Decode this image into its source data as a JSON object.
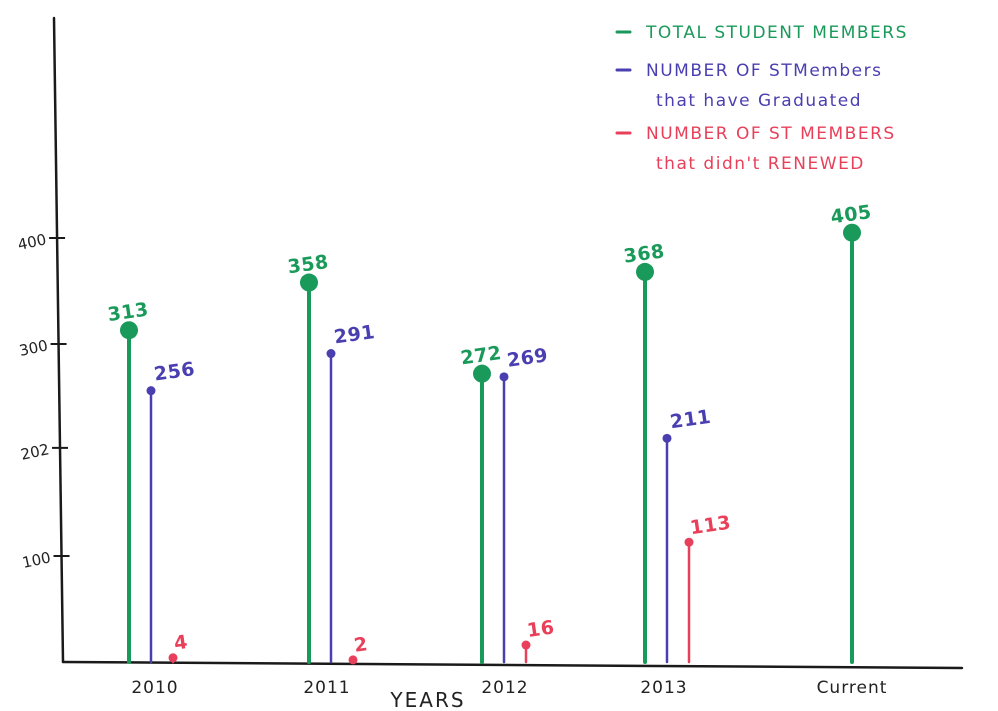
{
  "chart_data": {
    "type": "bar",
    "style": "lollipop",
    "xlabel": "YEARS",
    "ylabel": "",
    "categories": [
      "2010",
      "2011",
      "2012",
      "2013",
      "Current"
    ],
    "yticks": [
      {
        "value": 100,
        "label": "100"
      },
      {
        "value": 202,
        "label": "202"
      },
      {
        "value": 300,
        "label": "300"
      },
      {
        "value": 400,
        "label": "400"
      }
    ],
    "ylim": [
      0,
      500
    ],
    "grid": false,
    "legend_position": "top-right",
    "legend": [
      {
        "lines": [
          "TOTAL STUDENT MEMBERS"
        ],
        "color": "#1a9a5a"
      },
      {
        "lines": [
          "NUMBER OF STMembers",
          "that have Graduated"
        ],
        "color": "#4a3fb0"
      },
      {
        "lines": [
          "NUMBER OF ST MEMBERS",
          "that didn't RENEWED"
        ],
        "color": "#e8405a"
      }
    ],
    "series": [
      {
        "key": "total",
        "color": "#1a9a5a",
        "values": [
          313,
          358,
          272,
          368,
          405
        ]
      },
      {
        "key": "graduated",
        "color": "#4a3fb0",
        "values": [
          256,
          291,
          269,
          211,
          null
        ]
      },
      {
        "key": "not_renewed",
        "color": "#e8405a",
        "values": [
          4,
          2,
          16,
          113,
          null
        ]
      }
    ]
  }
}
